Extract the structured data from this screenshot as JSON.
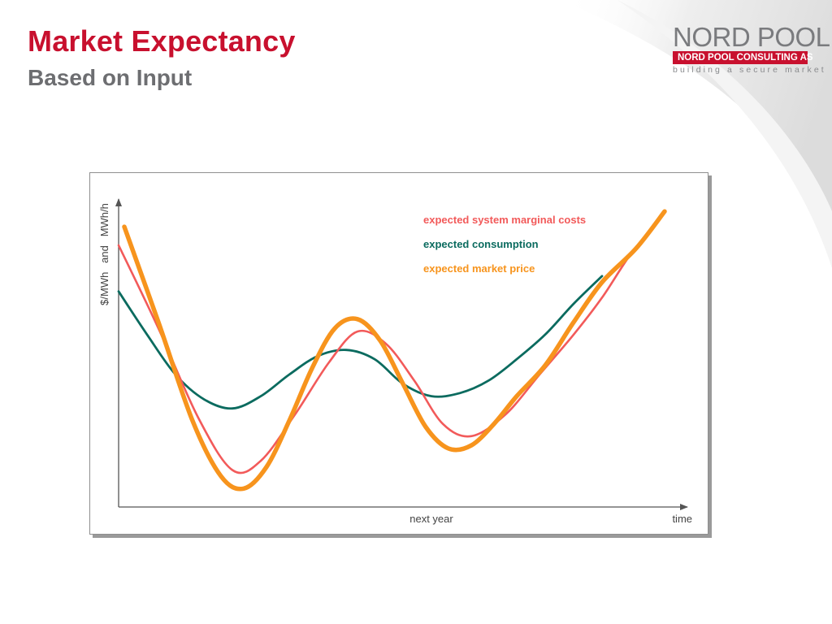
{
  "slide": {
    "title": "Market Expectancy",
    "subtitle": "Based on Input"
  },
  "logo": {
    "wordmark": "NORD POOL",
    "band": "NORD POOL CONSULTING AS",
    "tagline": "building a secure market"
  },
  "colors": {
    "title": "#c8102e",
    "subtitle": "#6d6e71",
    "marginal_costs": "#f25a5a",
    "consumption": "#0b6b5f",
    "market_price": "#f7941d"
  },
  "chart_data": {
    "type": "line",
    "ylabel": "$/MWh   and   MWh/h",
    "xlabel": "time",
    "x_tick_labels": [
      {
        "x": 0.55,
        "label": "next year"
      }
    ],
    "xlim": [
      0,
      1
    ],
    "ylim": [
      0,
      1
    ],
    "grid": false,
    "legend_position": "top-right",
    "series": [
      {
        "name": "expected system marginal costs",
        "color": "#f25a5a",
        "x": [
          0.0,
          0.07,
          0.14,
          0.2,
          0.25,
          0.31,
          0.37,
          0.42,
          0.47,
          0.52,
          0.57,
          0.62,
          0.68,
          0.74,
          0.8,
          0.85,
          0.9,
          0.95
        ],
        "y": [
          0.85,
          0.58,
          0.29,
          0.12,
          0.15,
          0.3,
          0.47,
          0.57,
          0.53,
          0.41,
          0.27,
          0.23,
          0.3,
          0.43,
          0.56,
          0.68,
          0.82,
          0.93
        ]
      },
      {
        "name": "expected consumption",
        "color": "#0b6b5f",
        "x": [
          0.0,
          0.05,
          0.1,
          0.15,
          0.2,
          0.25,
          0.3,
          0.35,
          0.4,
          0.45,
          0.5,
          0.55,
          0.6,
          0.65,
          0.7,
          0.75,
          0.8,
          0.85
        ],
        "y": [
          0.7,
          0.56,
          0.43,
          0.35,
          0.32,
          0.36,
          0.43,
          0.49,
          0.51,
          0.48,
          0.4,
          0.36,
          0.37,
          0.41,
          0.48,
          0.56,
          0.66,
          0.75
        ]
      },
      {
        "name": "expected market price",
        "color": "#f7941d",
        "x": [
          0.01,
          0.07,
          0.13,
          0.18,
          0.22,
          0.26,
          0.3,
          0.34,
          0.38,
          0.42,
          0.46,
          0.5,
          0.54,
          0.58,
          0.62,
          0.66,
          0.7,
          0.75,
          0.8,
          0.85,
          0.91,
          0.96
        ],
        "y": [
          0.91,
          0.6,
          0.28,
          0.1,
          0.06,
          0.13,
          0.28,
          0.45,
          0.58,
          0.61,
          0.54,
          0.4,
          0.26,
          0.19,
          0.2,
          0.27,
          0.36,
          0.46,
          0.6,
          0.73,
          0.84,
          0.96
        ]
      }
    ]
  }
}
